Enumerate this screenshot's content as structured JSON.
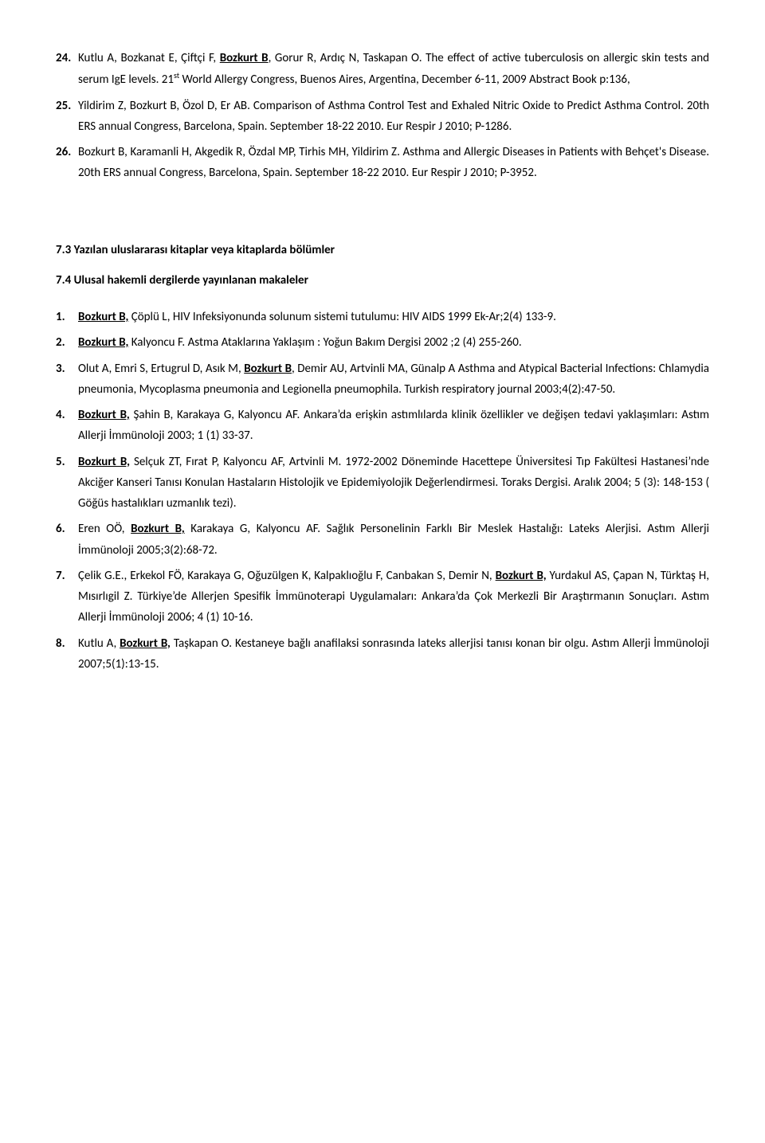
{
  "block1": [
    {
      "n": "24.",
      "html": "Kutlu A, Bozkanat E, Çiftçi F, <span class='u b'>Bozkurt B</span>, Gorur R, Ardıç N, Taskapan O. The effect of active tuberculosis on allergic skin tests and serum IgE levels. 21<span class='sup'>st</span> World Allergy Congress, Buenos Aires, Argentina, December 6-11, 2009 Abstract Book p:136,"
    },
    {
      "n": "25.",
      "html": "Yildirim Z, Bozkurt B, Özol D, Er AB. Comparison of Asthma Control Test and Exhaled Nitric Oxide to Predict Asthma Control. 20th ERS annual Congress, Barcelona, Spain. September 18-22 2010. Eur Respir J 2010; P-1286."
    },
    {
      "n": "26.",
      "html": "Bozkurt B, Karamanli H, Akgedik R, Özdal MP, Tirhis MH, Yildirim Z. Asthma and Allergic Diseases in Patients with Behçet's Disease. 20th ERS annual Congress, Barcelona, Spain. September 18-22 2010. Eur Respir J 2010; P-3952."
    }
  ],
  "heading73": "7.3 Yazılan uluslararası kitaplar veya kitaplarda bölümler",
  "heading74": "7.4 Ulusal hakemli dergilerde yayınlanan makaleler",
  "block2": [
    {
      "n": "1.",
      "html": "<span class='u b'>Bozkurt B,</span> Çöplü L, HIV Infeksiyonunda solunum sistemi tutulumu: HIV AIDS 1999 Ek-Ar;2(4) 133-9."
    },
    {
      "n": "2.",
      "html": "<span class='u b'>Bozkurt B,</span> Kalyoncu F. Astma Ataklarına Yaklaşım : Yoğun Bakım Dergisi 2002 ;2 (4) 255-260."
    },
    {
      "n": "3.",
      "html": "Olut A, Emri S,  Ertugrul D, Asık M,  <span class='u b'>Bozkurt B</span>, Demir AU, Artvinli MA, Günalp A Asthma and Atypical Bacterial Infections: Chlamydia pneumonia, Mycoplasma pneumonia and Legionella pneumophila. Turkish respiratory journal  2003;4(2):47-50."
    },
    {
      "n": "4.",
      "html": "<span class='u b'>Bozkurt B,</span> Şahin B, Karakaya G, Kalyoncu AF. Ankara&rsquo;da erişkin astımlılarda klinik özellikler ve değişen tedavi yaklaşımları: Astım Allerji İmmünoloji 2003; 1 (1) 33-37."
    },
    {
      "n": "5.",
      "html": "<span class='u b'>Bozkurt B,</span> Selçuk ZT, Fırat P, Kalyoncu AF, Artvinli M. 1972-2002 Döneminde Hacettepe Üniversitesi Tıp Fakültesi Hastanesi&rsquo;nde Akciğer Kanseri Tanısı Konulan Hastaların Histolojik ve Epidemiyolojik Değerlendirmesi. Toraks Dergisi. Aralık 2004; 5 (3): 148-153 ( Göğüs hastalıkları uzmanlık tezi)."
    },
    {
      "n": "6.",
      "html": "Eren OÖ, <span class='u b'>Bozkurt B,</span> Karakaya G, Kalyoncu AF. Sağlık Personelinin Farklı Bir Meslek Hastalığı: Lateks Alerjisi. Astım Allerji İmmünoloji 2005;3(2):68-72."
    },
    {
      "n": "7.",
      "html": "Çelik G.E., Erkekol FÖ,  Karakaya G, Oğuzülgen K, Kalpaklıoğlu F, Canbakan S,  Demir N, <span class='u b'>Bozkurt B,</span> Yurdakul AS, Çapan N, Türktaş H, Mısırlıgil Z. Türkiye&rsquo;de Allerjen Spesifik İmmünoterapi Uygulamaları: Ankara&rsquo;da Çok Merkezli Bir Araştırmanın Sonuçları. Astım Allerji İmmünoloji 2006; 4 (1) 10-16."
    },
    {
      "n": "8.",
      "html": "Kutlu A, <span class='u b'>Bozkurt B,</span> Taşkapan O. Kestaneye bağlı anafilaksi sonrasında lateks allerjisi tanısı konan bir olgu. Astım Allerji İmmünoloji 2007;5(1):13-15."
    }
  ]
}
